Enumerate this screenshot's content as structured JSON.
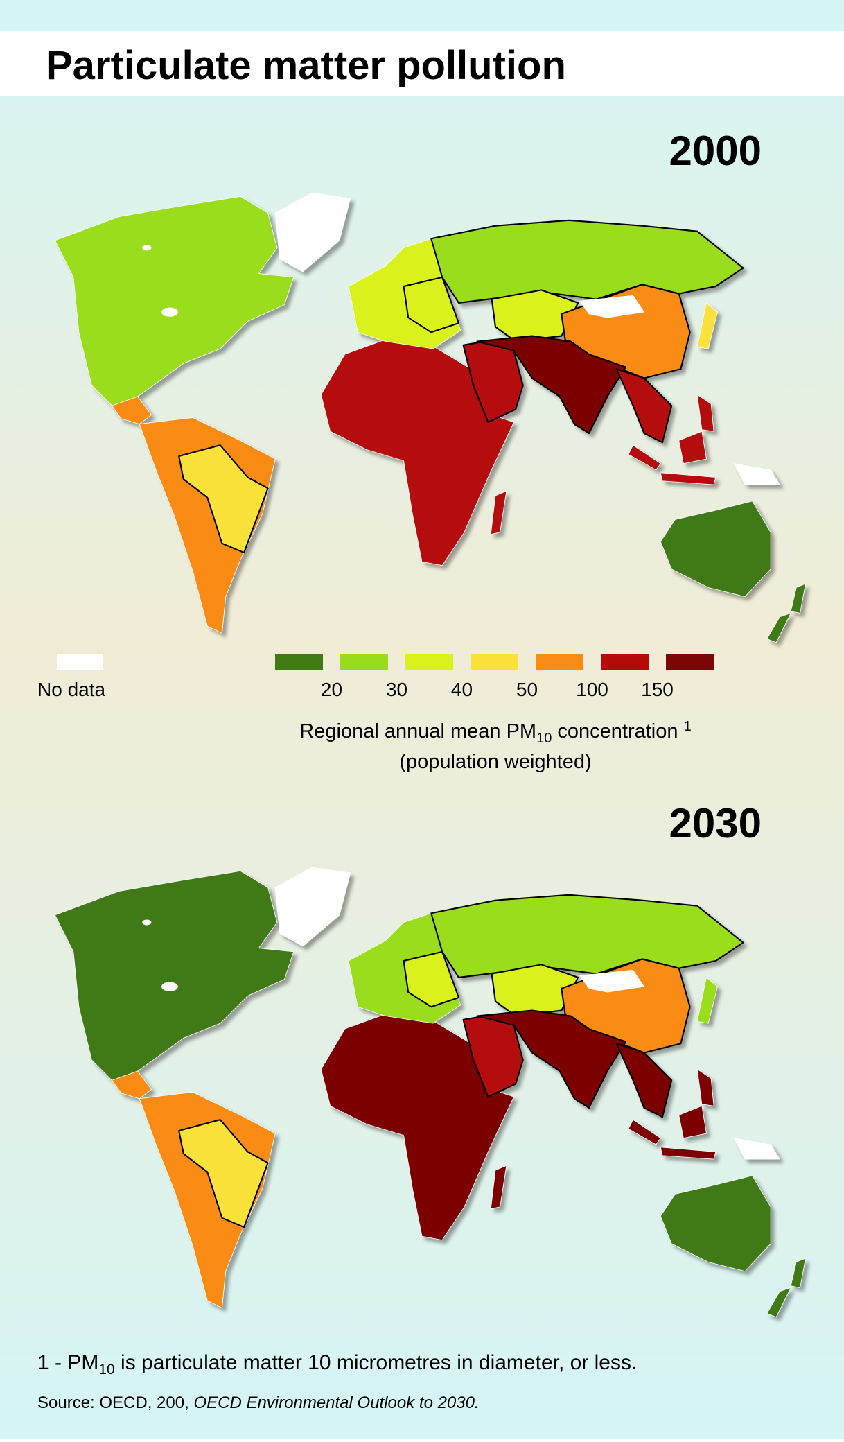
{
  "header": {
    "title": "Particulate matter pollution"
  },
  "maps": [
    {
      "year": "2000"
    },
    {
      "year": "2030"
    }
  ],
  "legend": {
    "no_data_label": "No data",
    "no_data_color": "#ffffff",
    "colors": [
      "#3f7a12",
      "#99dd1a",
      "#d9f21a",
      "#fbe23a",
      "#fa8c14",
      "#b50a0a",
      "#7c0505"
    ],
    "breaks": [
      20,
      30,
      40,
      50,
      100,
      150
    ],
    "title_parts": [
      "Regional annual mean PM",
      "10",
      " concentration ",
      "1"
    ],
    "subtitle": "(population weighted)"
  },
  "footnote_parts": [
    "1 - PM",
    "10",
    "  is particulate matter 10 micrometres in diameter, or less."
  ],
  "source_parts": [
    "Source: OECD, 200, ",
    "OECD Environmental Outlook to 2030."
  ]
}
